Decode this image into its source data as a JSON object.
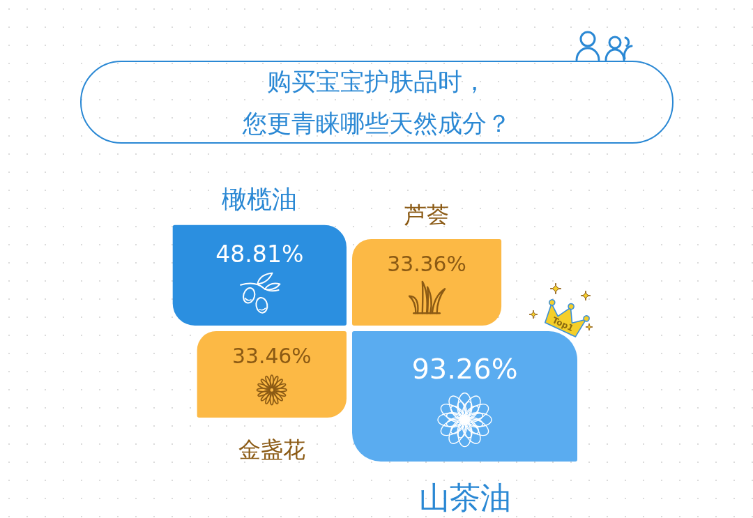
{
  "chart_data": {
    "type": "other",
    "title": "购买宝宝护肤品时，",
    "subtitle": "您更青睐哪些天然成分？",
    "categories": [
      "橄榄油",
      "芦荟",
      "金盏花",
      "山茶油"
    ],
    "values": [
      48.81,
      33.36,
      33.46,
      93.26
    ],
    "value_labels": [
      "48.81%",
      "33.36%",
      "33.46%",
      "93.26%"
    ],
    "colors": [
      "#2b8fe0",
      "#fcb945",
      "#fcb945",
      "#5aacf0"
    ],
    "annotations": [
      "Top1"
    ]
  }
}
